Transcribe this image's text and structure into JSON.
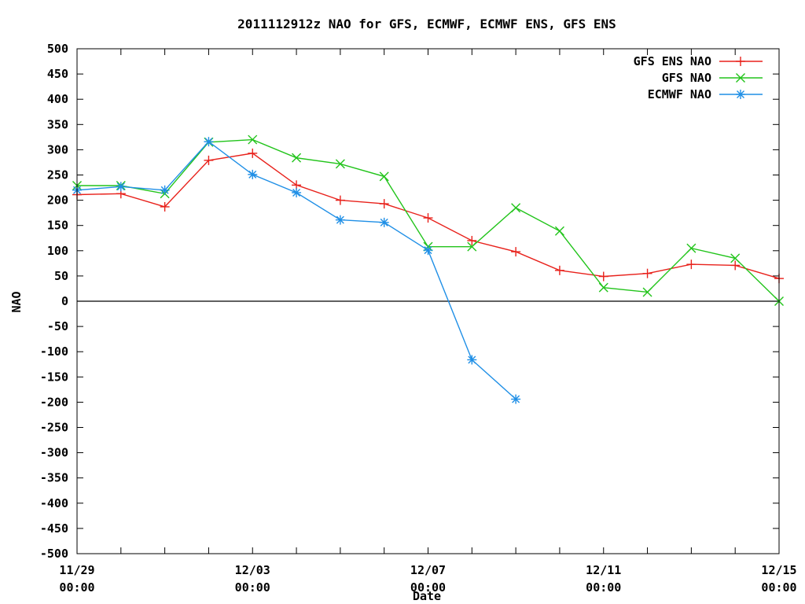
{
  "chart_data": {
    "type": "line",
    "title": "2011112912z NAO for GFS, ECMWF, ECMWF ENS, GFS ENS",
    "xlabel": "Date",
    "ylabel": "NAO",
    "ylim": [
      -500,
      500
    ],
    "yticks": [
      500,
      450,
      400,
      350,
      300,
      250,
      200,
      150,
      100,
      50,
      0,
      -50,
      -100,
      -150,
      -200,
      -250,
      -300,
      -350,
      -400,
      -450,
      -500
    ],
    "xlim": [
      "11/29 00:00",
      "12/15 00:00"
    ],
    "xticks": [
      {
        "date": "11/29",
        "time": "00:00"
      },
      {
        "date": "12/03",
        "time": "00:00"
      },
      {
        "date": "12/07",
        "time": "00:00"
      },
      {
        "date": "12/11",
        "time": "00:00"
      },
      {
        "date": "12/15",
        "time": "00:00"
      }
    ],
    "zero_line": true,
    "grid": false,
    "legend_position": "top-right",
    "x": [
      "11/29",
      "11/30",
      "12/01",
      "12/02",
      "12/03",
      "12/04",
      "12/05",
      "12/06",
      "12/07",
      "12/08",
      "12/09",
      "12/10",
      "12/11",
      "12/12",
      "12/13",
      "12/14",
      "12/15"
    ],
    "series": [
      {
        "name": "GFS ENS NAO",
        "color": "#e8211b",
        "marker": "plus",
        "values": [
          211,
          213,
          187,
          279,
          293,
          230,
          200,
          193,
          165,
          120,
          98,
          61,
          49,
          55,
          73,
          71,
          45
        ]
      },
      {
        "name": "GFS NAO",
        "color": "#22c41b",
        "marker": "cross",
        "values": [
          229,
          229,
          213,
          315,
          320,
          284,
          272,
          247,
          108,
          108,
          185,
          139,
          27,
          18,
          105,
          85,
          0
        ]
      },
      {
        "name": "ECMWF NAO",
        "color": "#1f8fe6",
        "marker": "star",
        "values": [
          220,
          227,
          220,
          316,
          251,
          215,
          161,
          156,
          101,
          -116,
          -194,
          null,
          null,
          null,
          null,
          null,
          null
        ]
      }
    ]
  }
}
